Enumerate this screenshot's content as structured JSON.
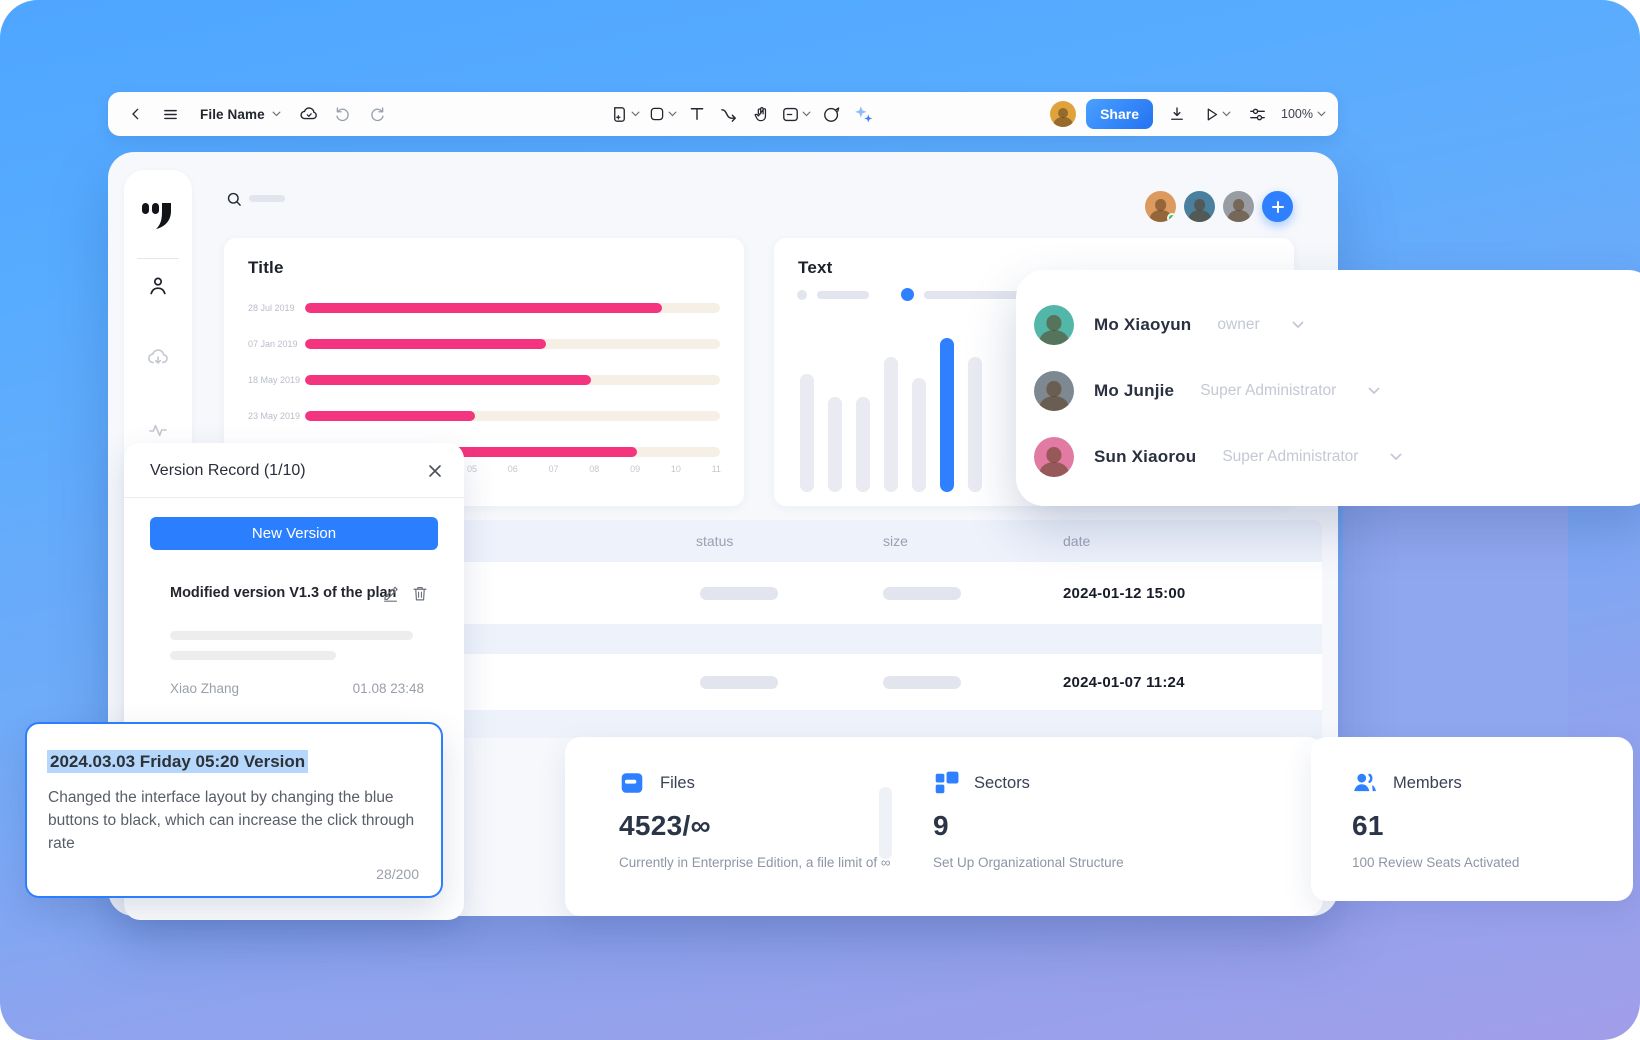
{
  "accent_color": "#2f80ff",
  "toolbar": {
    "file_name": "File Name",
    "share_label": "Share",
    "zoom_level": "100%",
    "icons_left": [
      "back-chevron-icon",
      "menu-icon",
      "cloud-icon",
      "undo-icon",
      "redo-icon"
    ],
    "icons_center": [
      "frame-tool-icon",
      "shape-tool-icon",
      "text-tool-icon",
      "connector-tool-icon",
      "hand-tool-icon",
      "note-tool-icon",
      "comment-bubble-icon",
      "ai-sparkles-icon"
    ],
    "icons_right": [
      "user-avatar",
      "download-icon",
      "play-icon",
      "adjustments-icon"
    ]
  },
  "dashboard": {
    "sidebar_icons": [
      "logo",
      "profile-icon",
      "cloud-download-icon",
      "activity-icon"
    ],
    "search_placeholder": "",
    "top_avatars_count": 3
  },
  "chart_data": [
    {
      "type": "bar",
      "orientation": "horizontal",
      "title": "Title",
      "categories": [
        "28 Jul 2019",
        "07 Jan 2019",
        "18 May 2019",
        "23 May 2019",
        ""
      ],
      "values": [
        86,
        58,
        69,
        41,
        80
      ],
      "xlabel": "",
      "ylabel": "",
      "xticks": [
        "05",
        "06",
        "07",
        "08",
        "09",
        "10",
        "11"
      ],
      "xlim": [
        0,
        100
      ],
      "grid": false,
      "bar_color": "#f4347f",
      "track_color": "#f6efe5"
    },
    {
      "type": "bar",
      "orientation": "vertical",
      "title": "Text",
      "categories": [
        "",
        "",
        "",
        "",
        "",
        "",
        ""
      ],
      "values": [
        118,
        95,
        95,
        135,
        114,
        154,
        135
      ],
      "highlight_index": 5,
      "bar_color": "#e9eaf2",
      "highlight_color": "#2f80ff",
      "grid": false
    }
  ],
  "members_panel": {
    "rows": [
      {
        "name": "Mo Xiaoyun",
        "role": "owner",
        "avatar_color": "#52b7a8"
      },
      {
        "name": "Mo Junjie",
        "role": "Super Administrator",
        "avatar_color": "#7d8890"
      },
      {
        "name": "Sun Xiaorou",
        "role": "Super Administrator",
        "avatar_color": "#e27ba3"
      }
    ]
  },
  "table": {
    "headers": {
      "status": "status",
      "size": "size",
      "date": "date"
    },
    "rows": [
      {
        "date": "2024-01-12 15:00"
      },
      {
        "date": "2024-01-07 11:24"
      }
    ]
  },
  "version_panel": {
    "title": "Version Record (1/10)",
    "new_version_label": "New Version",
    "item_title": "Modified version V1.3 of the plan",
    "author": "Xiao Zhang",
    "timestamp": "01.08 23:48"
  },
  "note_card": {
    "title": "2024.03.03 Friday 05:20 Version",
    "body": "Changed the interface layout by changing the blue buttons to black, which can increase the click through rate",
    "counter": "28/200"
  },
  "stats": {
    "files": {
      "label": "Files",
      "value": "4523/∞",
      "caption": "Currently in Enterprise Edition,  a file limit of ∞"
    },
    "sectors": {
      "label": "Sectors",
      "value": "9",
      "caption": "Set Up Organizational Structure"
    },
    "members": {
      "label": "Members",
      "value": "61",
      "caption": "100 Review Seats Activated"
    }
  }
}
